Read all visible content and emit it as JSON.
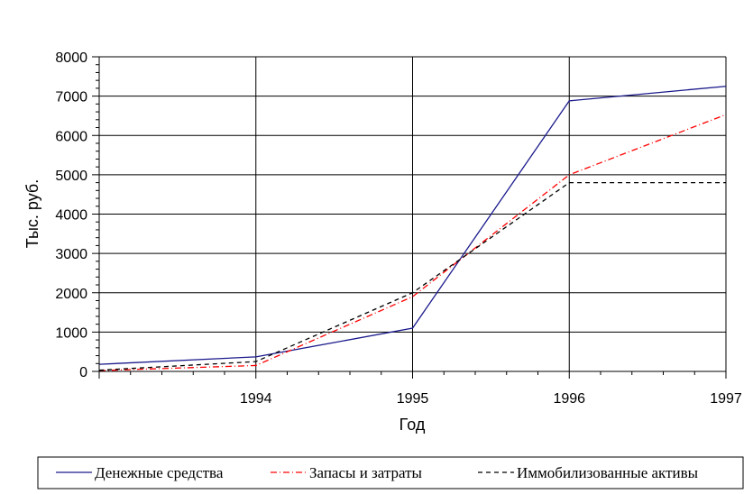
{
  "chart_data": {
    "type": "line",
    "title": "",
    "xlabel": "Год",
    "ylabel": "Тыс. руб.",
    "xlim": [
      1993,
      1997
    ],
    "ylim": [
      0,
      8000
    ],
    "yticks": [
      0,
      1000,
      2000,
      3000,
      4000,
      5000,
      6000,
      7000,
      8000
    ],
    "xticks": [
      1994,
      1995,
      1996,
      1997
    ],
    "grid": true,
    "legend_position": "bottom",
    "series": [
      {
        "name": "Денежные средства",
        "color": "#1a1a8c",
        "dash": "solid",
        "points": [
          [
            1993,
            180
          ],
          [
            1994,
            370
          ],
          [
            1995,
            1100
          ],
          [
            1996,
            6880
          ],
          [
            1997,
            7250
          ]
        ]
      },
      {
        "name": "Запасы и затраты",
        "color": "#ff0000",
        "dash": "dashdot",
        "points": [
          [
            1993,
            20
          ],
          [
            1994,
            150
          ],
          [
            1995,
            1900
          ],
          [
            1996,
            5000
          ],
          [
            1997,
            6530
          ]
        ]
      },
      {
        "name": "Иммобилизованные активы",
        "color": "#000000",
        "dash": "dashed",
        "points": [
          [
            1993,
            30
          ],
          [
            1994,
            250
          ],
          [
            1995,
            2000
          ],
          [
            1996,
            4800
          ],
          [
            1997,
            4800
          ]
        ]
      }
    ]
  }
}
